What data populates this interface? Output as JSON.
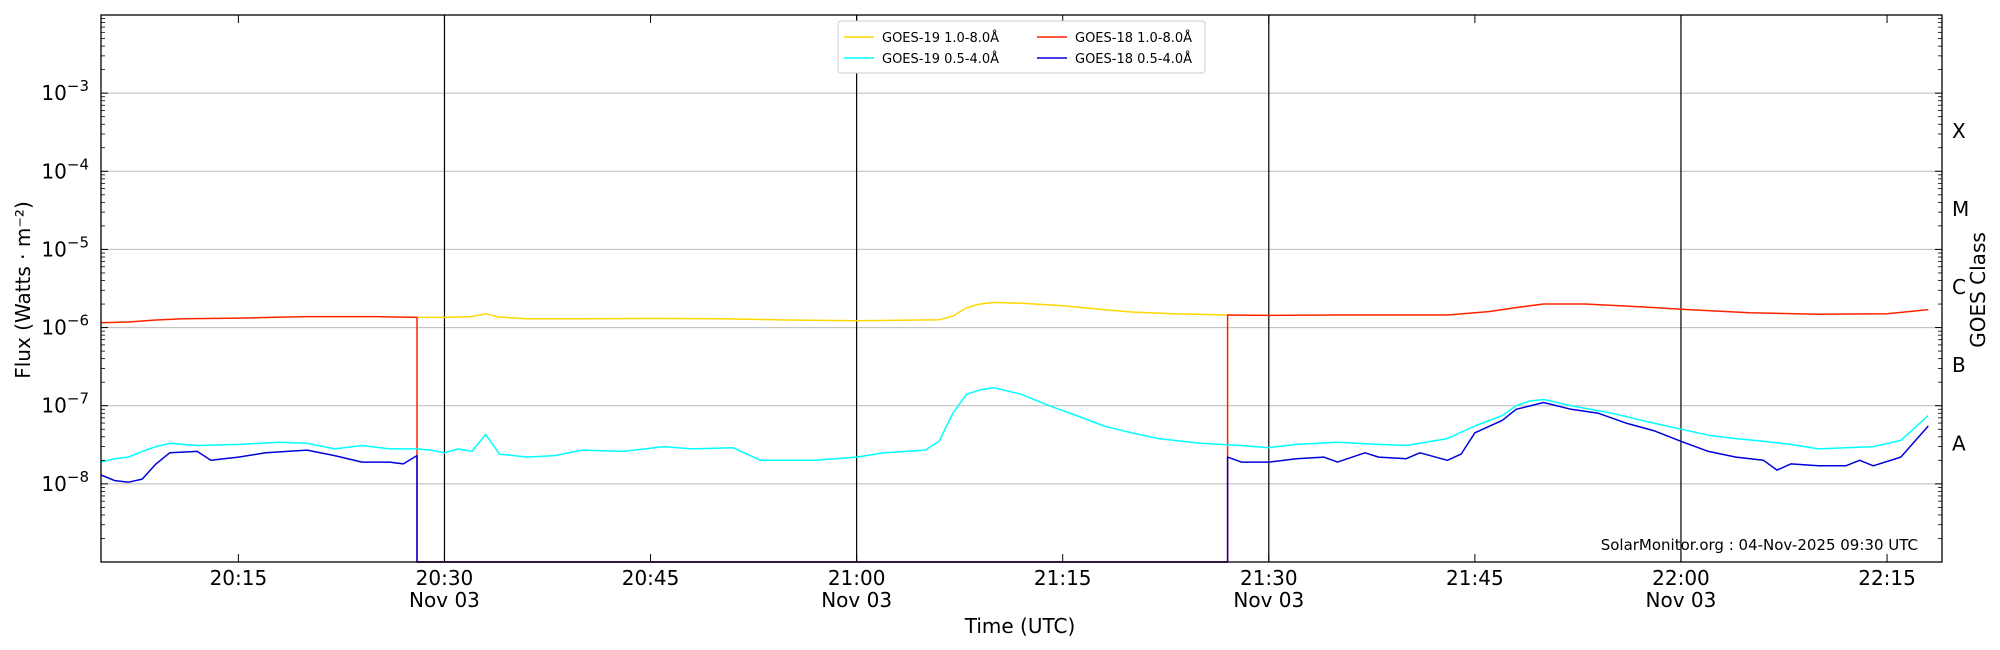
{
  "chart_data": {
    "type": "line",
    "xlabel": "Time (UTC)",
    "ylabel": "Flux (Watts · m⁻²)",
    "right_label": "GOES Class",
    "y_scale": "log",
    "ylim": [
      1e-09,
      0.01
    ],
    "xlim": [
      "20:05",
      "22:19"
    ],
    "grid": "horizontal",
    "legend_position": "top-center",
    "watermark": "SolarMonitor.org : 04-Nov-2025 09:30 UTC",
    "x_ticks": [
      {
        "time": "20:15",
        "label": "20:15",
        "sub": ""
      },
      {
        "time": "20:30",
        "label": "20:30",
        "sub": "Nov 03"
      },
      {
        "time": "20:45",
        "label": "20:45",
        "sub": ""
      },
      {
        "time": "21:00",
        "label": "21:00",
        "sub": "Nov 03"
      },
      {
        "time": "21:15",
        "label": "21:15",
        "sub": ""
      },
      {
        "time": "21:30",
        "label": "21:30",
        "sub": "Nov 03"
      },
      {
        "time": "21:45",
        "label": "21:45",
        "sub": ""
      },
      {
        "time": "22:00",
        "label": "22:00",
        "sub": "Nov 03"
      },
      {
        "time": "22:15",
        "label": "22:15",
        "sub": ""
      }
    ],
    "y_ticks": [
      {
        "value": 1e-08,
        "exp": "−8"
      },
      {
        "value": 1e-07,
        "exp": "−7"
      },
      {
        "value": 1e-06,
        "exp": "−6"
      },
      {
        "value": 1e-05,
        "exp": "−5"
      },
      {
        "value": 0.0001,
        "exp": "−4"
      },
      {
        "value": 0.001,
        "exp": "−3"
      }
    ],
    "goes_classes": [
      {
        "label": "A",
        "value": 1e-08
      },
      {
        "label": "B",
        "value": 1e-07
      },
      {
        "label": "C",
        "value": 1e-06
      },
      {
        "label": "M",
        "value": 1e-05
      },
      {
        "label": "X",
        "value": 0.0001
      }
    ],
    "vertical_lines": [
      "20:30",
      "21:00",
      "21:30",
      "22:00"
    ],
    "series": [
      {
        "name": "GOES-19 1.0-8.0Å",
        "color": "#ffd700",
        "data": [
          [
            "20:28",
            1.35e-06
          ],
          [
            "20:30",
            1.35e-06
          ],
          [
            "20:32",
            1.38e-06
          ],
          [
            "20:33",
            1.5e-06
          ],
          [
            "20:34",
            1.36e-06
          ],
          [
            "20:36",
            1.3e-06
          ],
          [
            "20:40",
            1.3e-06
          ],
          [
            "20:45",
            1.31e-06
          ],
          [
            "20:50",
            1.3e-06
          ],
          [
            "20:55",
            1.25e-06
          ],
          [
            "21:00",
            1.22e-06
          ],
          [
            "21:03",
            1.24e-06
          ],
          [
            "21:06",
            1.26e-06
          ],
          [
            "21:07",
            1.4e-06
          ],
          [
            "21:08",
            1.8e-06
          ],
          [
            "21:09",
            2e-06
          ],
          [
            "21:10",
            2.1e-06
          ],
          [
            "21:12",
            2.05e-06
          ],
          [
            "21:15",
            1.9e-06
          ],
          [
            "21:18",
            1.7e-06
          ],
          [
            "21:20",
            1.58e-06
          ],
          [
            "21:23",
            1.5e-06
          ],
          [
            "21:27",
            1.45e-06
          ]
        ]
      },
      {
        "name": "GOES-18 1.0-8.0Å",
        "color": "#ff2200",
        "data": [
          [
            "20:05",
            1.15e-06
          ],
          [
            "20:07",
            1.18e-06
          ],
          [
            "20:09",
            1.25e-06
          ],
          [
            "20:11",
            1.3e-06
          ],
          [
            "20:15",
            1.32e-06
          ],
          [
            "20:20",
            1.38e-06
          ],
          [
            "20:25",
            1.38e-06
          ],
          [
            "20:28",
            1.35e-06
          ],
          [
            "20:28",
            1e-09
          ],
          [
            "21:27",
            1e-09
          ],
          [
            "21:27",
            1.45e-06
          ],
          [
            "21:30",
            1.43e-06
          ],
          [
            "21:35",
            1.45e-06
          ],
          [
            "21:40",
            1.45e-06
          ],
          [
            "21:43",
            1.45e-06
          ],
          [
            "21:46",
            1.6e-06
          ],
          [
            "21:48",
            1.8e-06
          ],
          [
            "21:50",
            2e-06
          ],
          [
            "21:53",
            2e-06
          ],
          [
            "21:57",
            1.85e-06
          ],
          [
            "22:00",
            1.72e-06
          ],
          [
            "22:05",
            1.55e-06
          ],
          [
            "22:10",
            1.48e-06
          ],
          [
            "22:15",
            1.5e-06
          ],
          [
            "22:18",
            1.7e-06
          ]
        ]
      },
      {
        "name": "GOES-19 0.5-4.0Å",
        "color": "#00ffff",
        "data": [
          [
            "20:05",
            1.9e-08
          ],
          [
            "20:06",
            2.1e-08
          ],
          [
            "20:07",
            2.2e-08
          ],
          [
            "20:08",
            2.6e-08
          ],
          [
            "20:09",
            3e-08
          ],
          [
            "20:10",
            3.3e-08
          ],
          [
            "20:12",
            3.1e-08
          ],
          [
            "20:15",
            3.2e-08
          ],
          [
            "20:18",
            3.4e-08
          ],
          [
            "20:20",
            3.3e-08
          ],
          [
            "20:22",
            2.8e-08
          ],
          [
            "20:24",
            3.1e-08
          ],
          [
            "20:26",
            2.8e-08
          ],
          [
            "20:28",
            2.8e-08
          ],
          [
            "20:29",
            2.7e-08
          ],
          [
            "20:30",
            2.5e-08
          ],
          [
            "20:31",
            2.8e-08
          ],
          [
            "20:32",
            2.6e-08
          ],
          [
            "20:33",
            4.3e-08
          ],
          [
            "20:34",
            2.4e-08
          ],
          [
            "20:36",
            2.2e-08
          ],
          [
            "20:38",
            2.3e-08
          ],
          [
            "20:40",
            2.7e-08
          ],
          [
            "20:43",
            2.6e-08
          ],
          [
            "20:46",
            3e-08
          ],
          [
            "20:48",
            2.8e-08
          ],
          [
            "20:51",
            2.9e-08
          ],
          [
            "20:53",
            2e-08
          ],
          [
            "20:55",
            2e-08
          ],
          [
            "20:57",
            2e-08
          ],
          [
            "21:00",
            2.2e-08
          ],
          [
            "21:02",
            2.5e-08
          ],
          [
            "21:05",
            2.7e-08
          ],
          [
            "21:06",
            3.5e-08
          ],
          [
            "21:07",
            8e-08
          ],
          [
            "21:08",
            1.4e-07
          ],
          [
            "21:09",
            1.6e-07
          ],
          [
            "21:10",
            1.7e-07
          ],
          [
            "21:12",
            1.4e-07
          ],
          [
            "21:14",
            1e-07
          ],
          [
            "21:16",
            7.5e-08
          ],
          [
            "21:18",
            5.5e-08
          ],
          [
            "21:20",
            4.5e-08
          ],
          [
            "21:22",
            3.8e-08
          ],
          [
            "21:25",
            3.3e-08
          ],
          [
            "21:28",
            3.1e-08
          ],
          [
            "21:30",
            2.9e-08
          ],
          [
            "21:32",
            3.2e-08
          ],
          [
            "21:35",
            3.4e-08
          ],
          [
            "21:38",
            3.2e-08
          ],
          [
            "21:40",
            3.1e-08
          ],
          [
            "21:43",
            3.8e-08
          ],
          [
            "21:45",
            5.5e-08
          ],
          [
            "21:47",
            7.5e-08
          ],
          [
            "21:48",
            1e-07
          ],
          [
            "21:49",
            1.15e-07
          ],
          [
            "21:50",
            1.2e-07
          ],
          [
            "21:52",
            1e-07
          ],
          [
            "21:55",
            8e-08
          ],
          [
            "21:58",
            6e-08
          ],
          [
            "22:00",
            5e-08
          ],
          [
            "22:02",
            4.2e-08
          ],
          [
            "22:04",
            3.8e-08
          ],
          [
            "22:06",
            3.5e-08
          ],
          [
            "22:08",
            3.2e-08
          ],
          [
            "22:10",
            2.8e-08
          ],
          [
            "22:12",
            2.9e-08
          ],
          [
            "22:14",
            3e-08
          ],
          [
            "22:16",
            3.6e-08
          ],
          [
            "22:18",
            7.5e-08
          ]
        ]
      },
      {
        "name": "GOES-18 0.5-4.0Å",
        "color": "#0000dd",
        "data": [
          [
            "20:05",
            1.3e-08
          ],
          [
            "20:06",
            1.1e-08
          ],
          [
            "20:07",
            1.05e-08
          ],
          [
            "20:08",
            1.15e-08
          ],
          [
            "20:09",
            1.8e-08
          ],
          [
            "20:10",
            2.5e-08
          ],
          [
            "20:12",
            2.6e-08
          ],
          [
            "20:13",
            2e-08
          ],
          [
            "20:15",
            2.2e-08
          ],
          [
            "20:17",
            2.5e-08
          ],
          [
            "20:20",
            2.7e-08
          ],
          [
            "20:22",
            2.3e-08
          ],
          [
            "20:24",
            1.9e-08
          ],
          [
            "20:26",
            1.9e-08
          ],
          [
            "20:27",
            1.8e-08
          ],
          [
            "20:28",
            2.3e-08
          ],
          [
            "20:28",
            1e-09
          ],
          [
            "21:27",
            1e-09
          ],
          [
            "21:27",
            2.2e-08
          ],
          [
            "21:28",
            1.9e-08
          ],
          [
            "21:30",
            1.9e-08
          ],
          [
            "21:32",
            2.1e-08
          ],
          [
            "21:34",
            2.2e-08
          ],
          [
            "21:35",
            1.9e-08
          ],
          [
            "21:37",
            2.5e-08
          ],
          [
            "21:38",
            2.2e-08
          ],
          [
            "21:40",
            2.1e-08
          ],
          [
            "21:41",
            2.5e-08
          ],
          [
            "21:43",
            2e-08
          ],
          [
            "21:44",
            2.4e-08
          ],
          [
            "21:45",
            4.5e-08
          ],
          [
            "21:47",
            6.5e-08
          ],
          [
            "21:48",
            9e-08
          ],
          [
            "21:50",
            1.1e-07
          ],
          [
            "21:52",
            9e-08
          ],
          [
            "21:54",
            8e-08
          ],
          [
            "21:56",
            6e-08
          ],
          [
            "21:58",
            4.8e-08
          ],
          [
            "22:00",
            3.5e-08
          ],
          [
            "22:02",
            2.6e-08
          ],
          [
            "22:04",
            2.2e-08
          ],
          [
            "22:06",
            2e-08
          ],
          [
            "22:07",
            1.5e-08
          ],
          [
            "22:08",
            1.8e-08
          ],
          [
            "22:10",
            1.7e-08
          ],
          [
            "22:12",
            1.7e-08
          ],
          [
            "22:13",
            2e-08
          ],
          [
            "22:14",
            1.7e-08
          ],
          [
            "22:16",
            2.2e-08
          ],
          [
            "22:18",
            5.5e-08
          ]
        ]
      }
    ]
  }
}
